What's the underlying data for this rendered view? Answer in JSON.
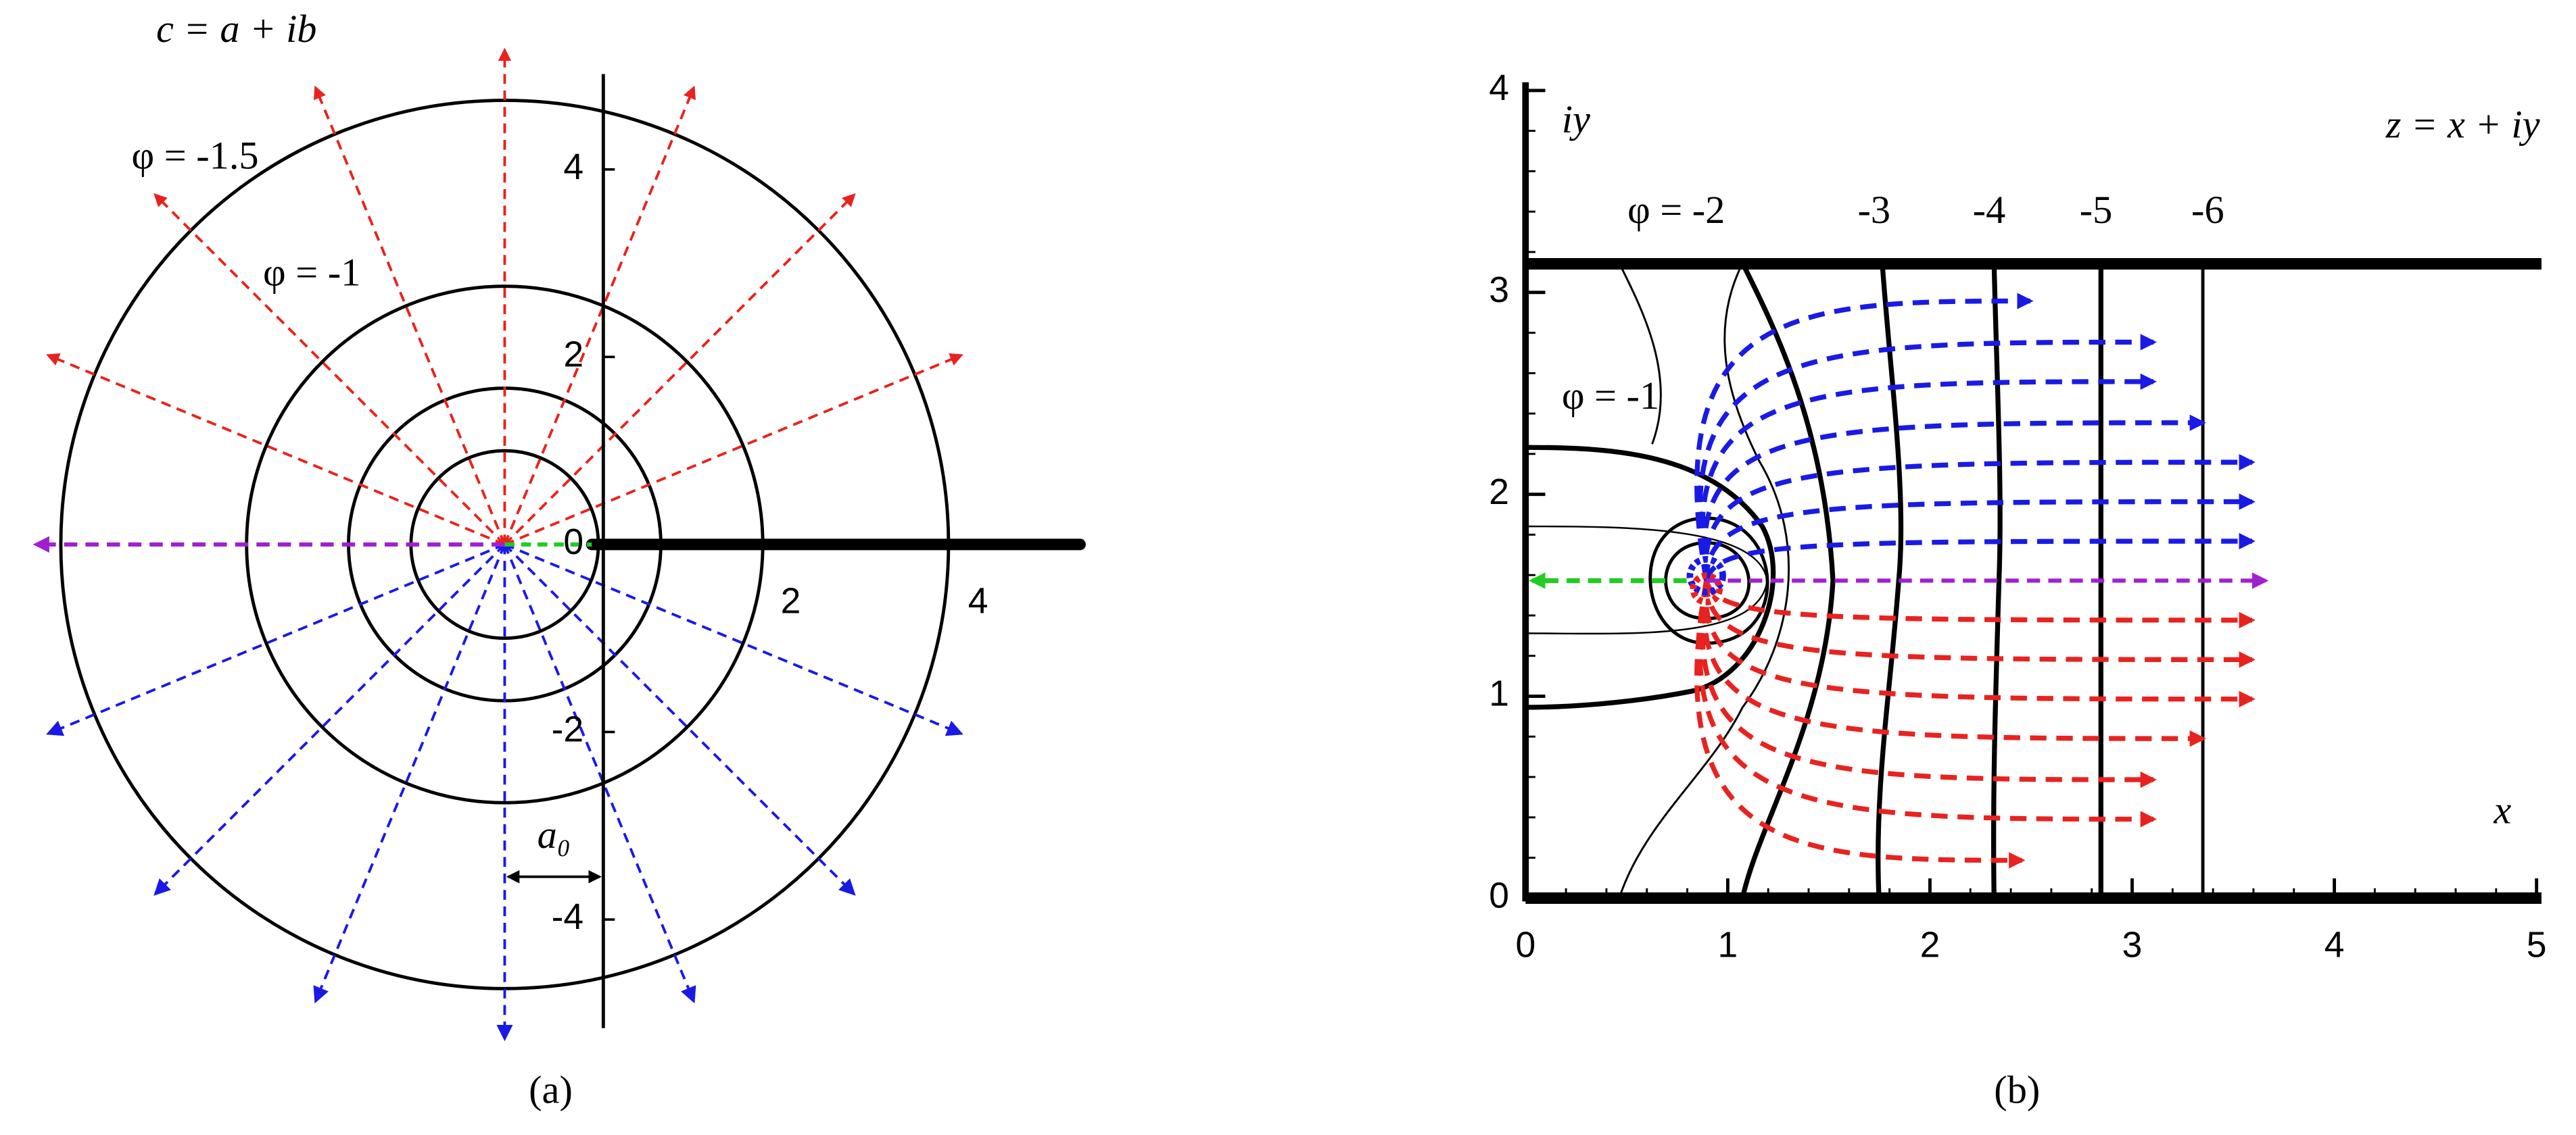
{
  "panel_a": {
    "label": "(a)",
    "plane_label": "c = a + ib",
    "contour_labels": [
      "φ = -1.5",
      "φ = -1"
    ],
    "offset_label": "a₀",
    "xticks": [
      2,
      4
    ],
    "yticks": [
      4,
      2,
      0,
      -2,
      -4
    ]
  },
  "panel_b": {
    "label": "(b)",
    "plane_label": "z = x + iy",
    "y_axis_label": "iy",
    "x_axis_label": "x",
    "contour_labels": [
      "φ = -2",
      "-3",
      "-4",
      "-5",
      "-6",
      "φ = -1"
    ],
    "xticks": [
      0,
      1,
      2,
      3,
      4,
      5
    ],
    "yticks": [
      0,
      1,
      2,
      3,
      4
    ]
  }
}
